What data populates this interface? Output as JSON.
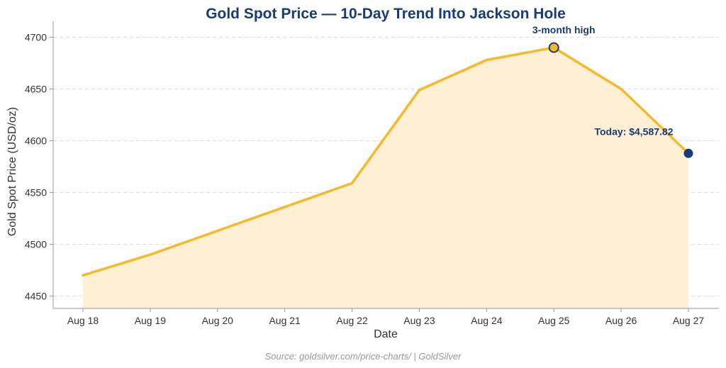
{
  "chart_data": {
    "type": "area",
    "title": "Gold Spot Price — 10-Day Trend Into Jackson Hole",
    "xlabel": "Date",
    "ylabel": "Gold Spot Price (USD/oz)",
    "categories": [
      "Aug 18",
      "Aug 19",
      "Aug 20",
      "Aug 21",
      "Aug 22",
      "Aug 23",
      "Aug 24",
      "Aug 25",
      "Aug 26",
      "Aug 27"
    ],
    "values": [
      4470,
      4490,
      4513,
      4536,
      4559,
      4649,
      4678,
      4690,
      4650,
      4587.82
    ],
    "ylim": [
      4438,
      4712
    ],
    "yticks": [
      4450,
      4500,
      4550,
      4600,
      4650,
      4700
    ],
    "grid": "horizontal dashed",
    "colors": {
      "line": "#f7b928",
      "fill": "#fdf0d5",
      "accent": "#1a3a78",
      "marker_fill": "#f7b928"
    },
    "annotations": [
      {
        "label": "3-month high",
        "index": 7
      },
      {
        "label": "Today: $4,587.82",
        "index": 9
      }
    ]
  },
  "source": "Source: goldsilver.com/price-charts/ | GoldSilver"
}
